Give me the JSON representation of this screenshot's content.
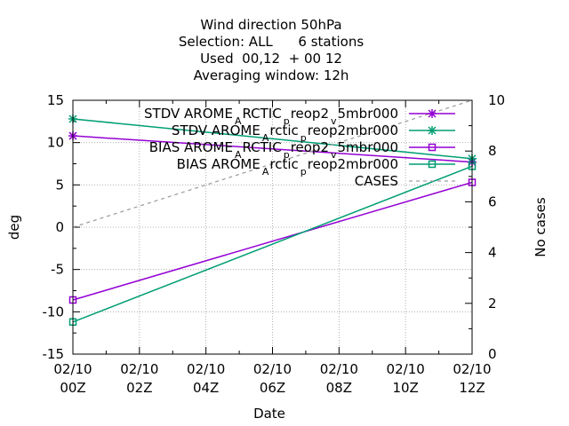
{
  "chart_data": {
    "type": "line",
    "title_lines": [
      "Wind direction 50hPa",
      "Selection: ALL      6 stations",
      "Used  00,12  + 00 12",
      "Averaging window: 12h"
    ],
    "xlabel": "Date",
    "ylabel": "deg",
    "y2label": "No cases",
    "x": [
      0,
      12
    ],
    "x_ticks": [
      {
        "h": 0,
        "l1": "02/10",
        "l2": "00Z"
      },
      {
        "h": 2,
        "l1": "02/10",
        "l2": "02Z"
      },
      {
        "h": 4,
        "l1": "02/10",
        "l2": "04Z"
      },
      {
        "h": 6,
        "l1": "02/10",
        "l2": "06Z"
      },
      {
        "h": 8,
        "l1": "02/10",
        "l2": "08Z"
      },
      {
        "h": 10,
        "l1": "02/10",
        "l2": "10Z"
      },
      {
        "h": 12,
        "l1": "02/10",
        "l2": "12Z"
      }
    ],
    "xlim": [
      0,
      12
    ],
    "ylim": [
      -15,
      15
    ],
    "y_ticks": [
      -15,
      -10,
      -5,
      0,
      5,
      10,
      15
    ],
    "y2lim": [
      0,
      10
    ],
    "y2_ticks": [
      0,
      2,
      4,
      6,
      8,
      10
    ],
    "grid": true,
    "legend_position": "top-right",
    "series": [
      {
        "name": "STDV AROME_ARCTIC_preop2_v_5mbr000",
        "axis": "y",
        "marker": "star",
        "color": "#9400d3",
        "values": [
          10.8,
          7.7
        ]
      },
      {
        "name": "STDV AROME_Arctic_preop2mbr000",
        "axis": "y",
        "marker": "star",
        "color": "#009e73",
        "values": [
          12.8,
          8.1
        ]
      },
      {
        "name": "BIAS AROME_ARCTIC_preop2_v_5mbr000",
        "axis": "y",
        "marker": "square",
        "color": "#9400d3",
        "values": [
          -8.6,
          5.3
        ]
      },
      {
        "name": "BIAS AROME_Arctic_preop2mbr000",
        "axis": "y",
        "marker": "square",
        "color": "#009e73",
        "values": [
          -11.2,
          7.2
        ]
      },
      {
        "name": "CASES",
        "axis": "y2",
        "marker": "none",
        "color": "#a0a0a0",
        "dashed": true,
        "values": [
          5,
          10
        ]
      }
    ],
    "legend_entries": [
      {
        "main": "STDV AROME",
        "sub": "A",
        "main2": "RCTIC",
        "sub2": "p",
        "main3": "reop2",
        "sub3": "v",
        "main4": "5mbr000"
      },
      {
        "main": "STDV AROME",
        "sub": "A",
        "main2": "rctic",
        "sub2": "p",
        "main3": "reop2mbr000",
        "sub3": "",
        "main4": ""
      },
      {
        "main": "BIAS AROME",
        "sub": "A",
        "main2": "RCTIC",
        "sub2": "p",
        "main3": "reop2",
        "sub3": "v",
        "main4": "5mbr000"
      },
      {
        "main": "BIAS AROME",
        "sub": "A",
        "main2": "rctic",
        "sub2": "p",
        "main3": "reop2mbr000",
        "sub3": "",
        "main4": ""
      },
      {
        "main": "CASES",
        "sub": "",
        "main2": "",
        "sub2": "",
        "main3": "",
        "sub3": "",
        "main4": ""
      }
    ]
  }
}
